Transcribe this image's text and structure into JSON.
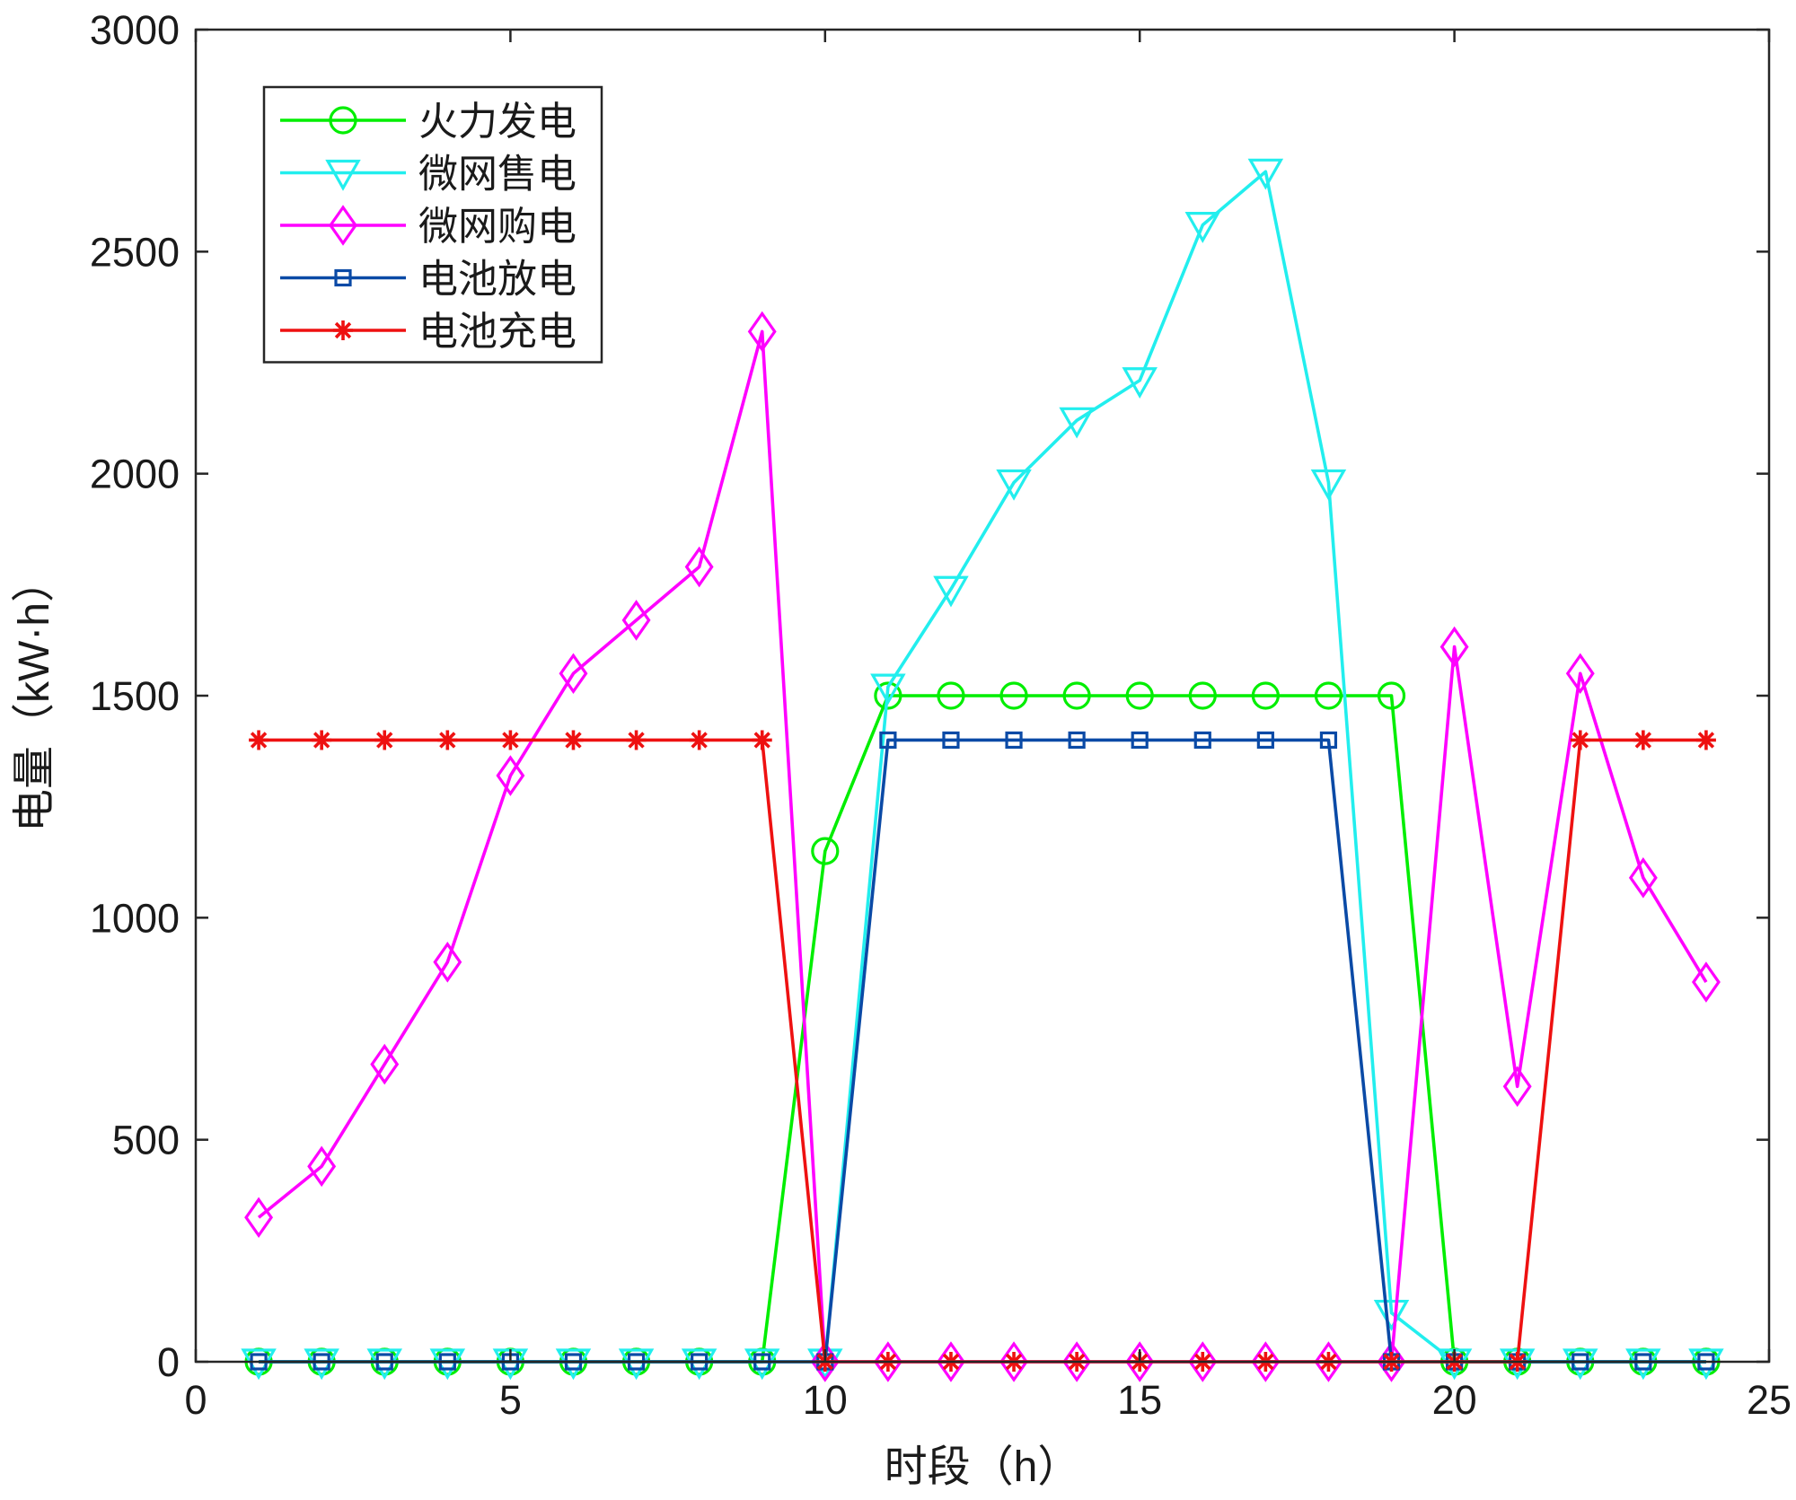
{
  "chart_data": {
    "type": "line",
    "xlabel": "时段（h）",
    "ylabel": "电量（kW·h）",
    "xlim": [
      0,
      25
    ],
    "ylim": [
      0,
      3000
    ],
    "xticks": [
      0,
      5,
      10,
      15,
      20,
      25
    ],
    "yticks": [
      0,
      500,
      1000,
      1500,
      2000,
      2500,
      3000
    ],
    "xtick_labels": [
      "0",
      "5",
      "10",
      "15",
      "20",
      "25"
    ],
    "ytick_labels": [
      "0",
      "500",
      "1000",
      "1500",
      "2000",
      "2500",
      "3000"
    ],
    "grid": false,
    "legend_position": "top-left",
    "x": [
      1,
      2,
      3,
      4,
      5,
      6,
      7,
      8,
      9,
      10,
      11,
      12,
      13,
      14,
      15,
      16,
      17,
      18,
      19,
      20,
      21,
      22,
      23,
      24
    ],
    "series": [
      {
        "name": "火力发电",
        "color": "#00ee00",
        "marker": "circle",
        "values": [
          0,
          0,
          0,
          0,
          0,
          0,
          0,
          0,
          0,
          1150,
          1500,
          1500,
          1500,
          1500,
          1500,
          1500,
          1500,
          1500,
          1500,
          0,
          0,
          0,
          0,
          0
        ]
      },
      {
        "name": "微网售电",
        "color": "#22eeee",
        "marker": "triangle-down",
        "values": [
          0,
          0,
          0,
          0,
          0,
          0,
          0,
          0,
          0,
          0,
          1520,
          1740,
          1980,
          2120,
          2210,
          2560,
          2680,
          1980,
          110,
          0,
          0,
          0,
          0,
          0
        ]
      },
      {
        "name": "微网购电",
        "color": "#ff00ff",
        "marker": "diamond",
        "values": [
          325,
          440,
          670,
          900,
          1320,
          1550,
          1670,
          1790,
          2320,
          0,
          0,
          0,
          0,
          0,
          0,
          0,
          0,
          0,
          0,
          1610,
          620,
          1550,
          1090,
          855
        ]
      },
      {
        "name": "电池放电",
        "color": "#0a4aa6",
        "marker": "square",
        "values": [
          0,
          0,
          0,
          0,
          0,
          0,
          0,
          0,
          0,
          0,
          1400,
          1400,
          1400,
          1400,
          1400,
          1400,
          1400,
          1400,
          0,
          0,
          0,
          0,
          0,
          0
        ]
      },
      {
        "name": "电池充电",
        "color": "#ee1111",
        "marker": "asterisk",
        "values": [
          1400,
          1400,
          1400,
          1400,
          1400,
          1400,
          1400,
          1400,
          1400,
          0,
          0,
          0,
          0,
          0,
          0,
          0,
          0,
          0,
          0,
          0,
          0,
          1400,
          1400,
          1400
        ]
      }
    ]
  }
}
